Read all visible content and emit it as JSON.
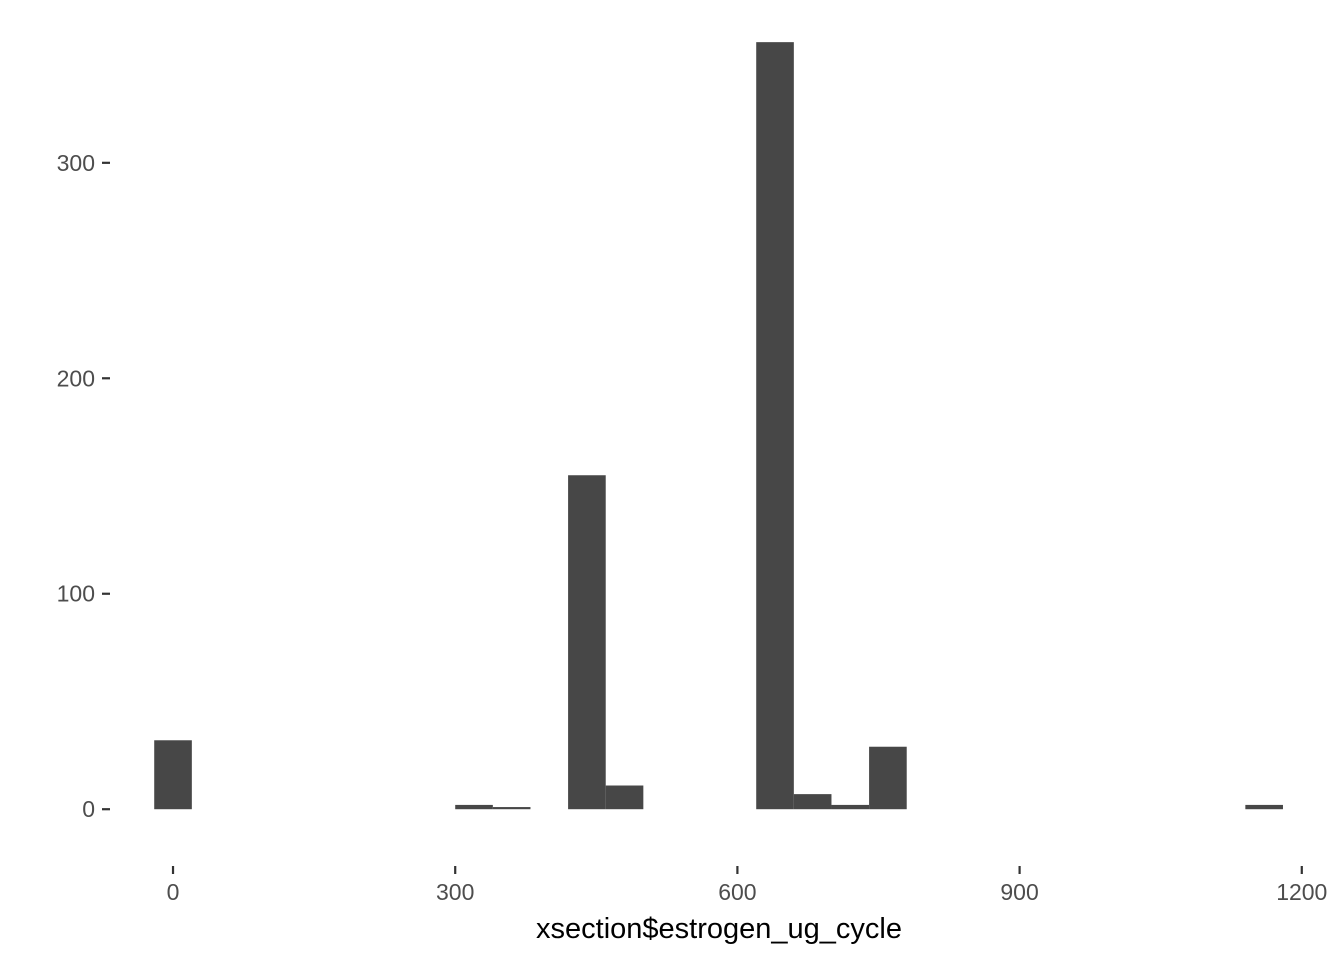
{
  "chart_data": {
    "type": "bar",
    "title": "",
    "xlabel": "xsection$estrogen_ug_cycle",
    "ylabel": "",
    "bin_width": 40,
    "x_ticks": [
      0,
      300,
      600,
      900,
      1200
    ],
    "y_ticks": [
      0,
      100,
      200,
      300
    ],
    "xlim": [
      -67,
      1230
    ],
    "ylim": [
      -18,
      357
    ],
    "grid": false,
    "legend": "none",
    "bars": [
      {
        "x": 0,
        "count": 32
      },
      {
        "x": 320,
        "count": 2
      },
      {
        "x": 360,
        "count": 1
      },
      {
        "x": 440,
        "count": 155
      },
      {
        "x": 480,
        "count": 11
      },
      {
        "x": 640,
        "count": 356
      },
      {
        "x": 680,
        "count": 7
      },
      {
        "x": 720,
        "count": 2
      },
      {
        "x": 760,
        "count": 29
      },
      {
        "x": 1160,
        "count": 2
      }
    ],
    "bar_color": "#474747"
  }
}
